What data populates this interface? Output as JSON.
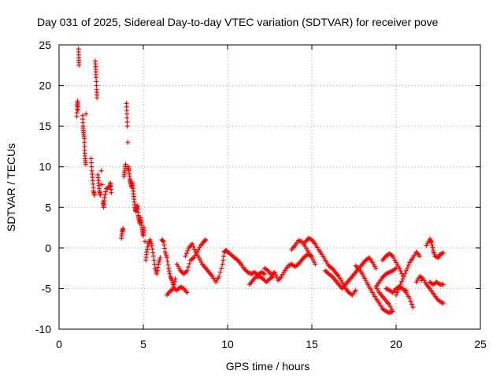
{
  "chart_data": {
    "type": "scatter",
    "title": "Day 031 of 2025, Sidereal Day-to-day VTEC variation (SDTVAR) for receiver pove",
    "xlabel": "GPS time / hours",
    "ylabel": "SDTVAR / TECUs",
    "xlim": [
      0,
      25
    ],
    "ylim": [
      -10,
      25
    ],
    "xticks": [
      0,
      5,
      10,
      15,
      20,
      25
    ],
    "yticks": [
      -10,
      -5,
      0,
      5,
      10,
      15,
      20,
      25
    ],
    "grid": true,
    "marker": "+",
    "colors": {
      "series": "#ff0000",
      "grid": "#a0a0a0",
      "axes": "#000000"
    },
    "series": [
      {
        "name": "SDTVAR",
        "points": [
          [
            1.05,
            16.2
          ],
          [
            1.08,
            17.5
          ],
          [
            1.1,
            18.1
          ],
          [
            1.12,
            17.0
          ],
          [
            1.15,
            24.5
          ],
          [
            1.17,
            23.4
          ],
          [
            1.18,
            22.5
          ],
          [
            1.4,
            16.3
          ],
          [
            1.42,
            15.0
          ],
          [
            1.45,
            14.2
          ],
          [
            1.5,
            13.5
          ],
          [
            1.52,
            12.0
          ],
          [
            1.55,
            11.0
          ],
          [
            1.58,
            10.3
          ],
          [
            1.6,
            16.5
          ],
          [
            1.9,
            11.0
          ],
          [
            1.95,
            9.5
          ],
          [
            2.0,
            8.3
          ],
          [
            2.05,
            7.0
          ],
          [
            2.1,
            6.5
          ],
          [
            2.15,
            23.0
          ],
          [
            2.18,
            22.0
          ],
          [
            2.2,
            21.0
          ],
          [
            2.23,
            19.5
          ],
          [
            2.25,
            18.5
          ],
          [
            2.3,
            9.0
          ],
          [
            2.35,
            8.0
          ],
          [
            2.4,
            7.0
          ],
          [
            2.45,
            6.5
          ],
          [
            2.5,
            9.5
          ],
          [
            2.55,
            7.8
          ],
          [
            2.6,
            5.7
          ],
          [
            2.65,
            5.0
          ],
          [
            2.7,
            6.2
          ],
          [
            2.8,
            7.3
          ],
          [
            3.0,
            7.5
          ],
          [
            3.05,
            8.0
          ],
          [
            3.1,
            6.8
          ],
          [
            3.7,
            1.2
          ],
          [
            3.75,
            2.0
          ],
          [
            3.8,
            2.4
          ],
          [
            3.85,
            8.8
          ],
          [
            3.9,
            9.5
          ],
          [
            3.95,
            10.3
          ],
          [
            4.0,
            17.8
          ],
          [
            4.02,
            16.5
          ],
          [
            4.05,
            15.0
          ],
          [
            4.08,
            13.0
          ],
          [
            4.1,
            10.0
          ],
          [
            4.15,
            9.5
          ],
          [
            4.2,
            8.5
          ],
          [
            4.25,
            8.0
          ],
          [
            4.3,
            7.5
          ],
          [
            4.35,
            8.0
          ],
          [
            4.4,
            7.0
          ],
          [
            4.45,
            6.0
          ],
          [
            4.5,
            5.0
          ],
          [
            4.55,
            4.5
          ],
          [
            4.6,
            4.8
          ],
          [
            4.65,
            5.2
          ],
          [
            4.7,
            4.0
          ],
          [
            4.75,
            3.5
          ],
          [
            4.8,
            3.0
          ],
          [
            4.85,
            3.7
          ],
          [
            4.9,
            2.8
          ],
          [
            4.95,
            2.0
          ],
          [
            5.0,
            1.5
          ],
          [
            5.05,
            2.5
          ],
          [
            5.1,
            0.8
          ],
          [
            5.15,
            -1.5
          ],
          [
            5.2,
            -0.5
          ],
          [
            5.3,
            0.5
          ],
          [
            5.4,
            1.0
          ],
          [
            5.5,
            0.3
          ],
          [
            5.6,
            -1.0
          ],
          [
            5.7,
            -2.5
          ],
          [
            5.8,
            -3.2
          ],
          [
            5.9,
            -2.0
          ],
          [
            6.0,
            -1.2
          ],
          [
            6.1,
            1.0
          ],
          [
            6.2,
            0.8
          ],
          [
            6.3,
            -0.5
          ],
          [
            6.4,
            -1.2
          ],
          [
            6.5,
            -2.5
          ],
          [
            6.6,
            -3.5
          ],
          [
            6.7,
            -4.0
          ],
          [
            6.8,
            -4.8
          ],
          [
            6.9,
            -3.8
          ],
          [
            6.4,
            -5.8
          ],
          [
            6.6,
            -5.3
          ],
          [
            6.8,
            -5.0
          ],
          [
            7.0,
            -5.2
          ],
          [
            7.2,
            -4.8
          ],
          [
            7.4,
            -5.0
          ],
          [
            7.6,
            -5.5
          ],
          [
            7.0,
            -2.0
          ],
          [
            7.2,
            -2.8
          ],
          [
            7.4,
            -3.2
          ],
          [
            7.6,
            -2.8
          ],
          [
            7.8,
            -1.5
          ],
          [
            8.0,
            -1.2
          ],
          [
            8.2,
            -0.5
          ],
          [
            8.4,
            0.3
          ],
          [
            8.6,
            0.8
          ],
          [
            8.7,
            1.0
          ],
          [
            7.5,
            -1.0
          ],
          [
            7.7,
            0.0
          ],
          [
            7.9,
            0.5
          ],
          [
            8.1,
            -0.5
          ],
          [
            8.3,
            -1.2
          ],
          [
            8.5,
            -2.0
          ],
          [
            8.7,
            -2.5
          ],
          [
            8.9,
            -3.0
          ],
          [
            9.1,
            -3.5
          ],
          [
            9.3,
            -4.2
          ],
          [
            9.5,
            -3.5
          ],
          [
            9.7,
            -2.0
          ],
          [
            9.8,
            -0.5
          ],
          [
            9.9,
            -0.3
          ],
          [
            10.0,
            -0.5
          ],
          [
            10.2,
            -0.8
          ],
          [
            10.4,
            -1.2
          ],
          [
            10.6,
            -1.5
          ],
          [
            10.8,
            -2.0
          ],
          [
            11.0,
            -2.6
          ],
          [
            11.2,
            -3.0
          ],
          [
            11.4,
            -3.2
          ],
          [
            11.6,
            -3.0
          ],
          [
            11.8,
            -3.3
          ],
          [
            12.0,
            -3.0
          ],
          [
            12.2,
            -3.2
          ],
          [
            11.3,
            -4.5
          ],
          [
            11.5,
            -4.0
          ],
          [
            11.7,
            -3.5
          ],
          [
            11.9,
            -3.5
          ],
          [
            12.1,
            -3.8
          ],
          [
            12.3,
            -4.2
          ],
          [
            12.5,
            -3.8
          ],
          [
            12.7,
            -3.5
          ],
          [
            12.2,
            -2.5
          ],
          [
            12.4,
            -2.8
          ],
          [
            12.6,
            -3.3
          ],
          [
            12.8,
            -3.0
          ],
          [
            13.0,
            -4.0
          ],
          [
            13.2,
            -3.5
          ],
          [
            13.4,
            -2.8
          ],
          [
            13.6,
            -2.2
          ],
          [
            13.8,
            -2.0
          ],
          [
            14.0,
            -2.3
          ],
          [
            14.2,
            -2.0
          ],
          [
            14.4,
            -1.5
          ],
          [
            14.6,
            -1.0
          ],
          [
            14.8,
            -0.8
          ],
          [
            15.0,
            -1.0
          ],
          [
            13.8,
            -0.2
          ],
          [
            14.0,
            0.3
          ],
          [
            14.2,
            0.9
          ],
          [
            14.4,
            0.8
          ],
          [
            14.6,
            0.2
          ],
          [
            14.8,
            -0.5
          ],
          [
            15.0,
            -1.2
          ],
          [
            15.2,
            -2.0
          ],
          [
            14.6,
            0.7
          ],
          [
            14.8,
            1.2
          ],
          [
            15.0,
            1.0
          ],
          [
            15.2,
            0.5
          ],
          [
            15.4,
            -0.2
          ],
          [
            15.6,
            -0.8
          ],
          [
            15.8,
            -1.5
          ],
          [
            16.0,
            -2.2
          ],
          [
            16.2,
            -2.5
          ],
          [
            16.4,
            -3.0
          ],
          [
            16.6,
            -3.5
          ],
          [
            16.8,
            -4.2
          ],
          [
            17.0,
            -5.0
          ],
          [
            17.2,
            -5.5
          ],
          [
            17.4,
            -5.8
          ],
          [
            17.6,
            -5.2
          ],
          [
            15.8,
            -2.8
          ],
          [
            16.0,
            -3.2
          ],
          [
            16.2,
            -3.5
          ],
          [
            16.4,
            -4.0
          ],
          [
            16.6,
            -4.5
          ],
          [
            16.8,
            -5.0
          ],
          [
            17.0,
            -4.5
          ],
          [
            17.2,
            -4.0
          ],
          [
            17.4,
            -3.5
          ],
          [
            17.6,
            -3.0
          ],
          [
            17.8,
            -2.5
          ],
          [
            18.0,
            -2.0
          ],
          [
            18.2,
            -1.5
          ],
          [
            18.4,
            -1.2
          ],
          [
            18.6,
            -1.8
          ],
          [
            18.8,
            -2.5
          ],
          [
            17.6,
            -2.2
          ],
          [
            17.8,
            -2.6
          ],
          [
            18.0,
            -3.2
          ],
          [
            18.2,
            -4.0
          ],
          [
            18.4,
            -4.8
          ],
          [
            18.6,
            -5.5
          ],
          [
            18.8,
            -6.2
          ],
          [
            19.0,
            -6.8
          ],
          [
            19.2,
            -7.5
          ],
          [
            19.4,
            -7.8
          ],
          [
            19.6,
            -8.0
          ],
          [
            19.8,
            -7.8
          ],
          [
            19.6,
            -7.0
          ],
          [
            19.4,
            -6.5
          ],
          [
            19.2,
            -6.0
          ],
          [
            19.0,
            -5.5
          ],
          [
            18.8,
            -4.8
          ],
          [
            19.0,
            -4.2
          ],
          [
            19.2,
            -3.6
          ],
          [
            19.4,
            -3.2
          ],
          [
            19.6,
            -3.0
          ],
          [
            19.8,
            -2.8
          ],
          [
            20.0,
            -2.5
          ],
          [
            19.2,
            -1.5
          ],
          [
            19.4,
            -1.0
          ],
          [
            19.6,
            -0.7
          ],
          [
            19.8,
            -1.0
          ],
          [
            20.0,
            -1.8
          ],
          [
            20.2,
            -2.5
          ],
          [
            20.4,
            -3.5
          ],
          [
            20.6,
            -5.2
          ],
          [
            19.4,
            -5.0
          ],
          [
            19.6,
            -5.2
          ],
          [
            19.8,
            -5.5
          ],
          [
            20.0,
            -5.0
          ],
          [
            20.2,
            -4.8
          ],
          [
            20.4,
            -5.0
          ],
          [
            20.6,
            -5.5
          ],
          [
            20.8,
            -6.2
          ],
          [
            21.0,
            -7.3
          ],
          [
            20.0,
            -5.8
          ],
          [
            20.2,
            -4.8
          ],
          [
            20.4,
            -3.8
          ],
          [
            20.6,
            -2.8
          ],
          [
            20.8,
            -1.8
          ],
          [
            21.0,
            -1.2
          ],
          [
            21.2,
            -0.5
          ],
          [
            21.4,
            -1.0
          ],
          [
            21.2,
            -4.2
          ],
          [
            21.4,
            -3.5
          ],
          [
            21.6,
            -3.8
          ],
          [
            21.8,
            -4.5
          ],
          [
            22.0,
            -5.0
          ],
          [
            22.2,
            -5.6
          ],
          [
            22.4,
            -6.2
          ],
          [
            22.6,
            -6.6
          ],
          [
            22.8,
            -6.8
          ],
          [
            21.5,
            -4.0
          ],
          [
            21.8,
            0.3
          ],
          [
            22.0,
            1.1
          ],
          [
            22.1,
            0.7
          ],
          [
            22.2,
            -0.3
          ],
          [
            22.3,
            -1.0
          ],
          [
            22.5,
            -1.2
          ],
          [
            22.6,
            -0.8
          ],
          [
            22.8,
            -0.6
          ],
          [
            22.0,
            -4.2
          ],
          [
            22.2,
            -4.5
          ],
          [
            22.4,
            -4.2
          ],
          [
            22.6,
            -4.5
          ],
          [
            22.8,
            -4.5
          ]
        ]
      }
    ]
  }
}
